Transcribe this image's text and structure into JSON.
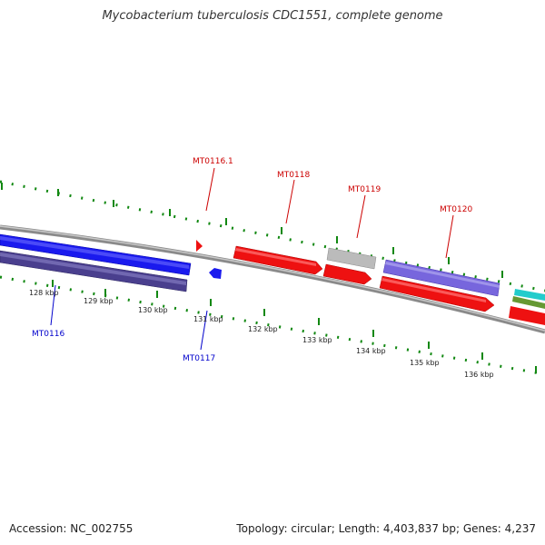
{
  "title": "Mycobacterium tuberculosis CDC1551, complete genome",
  "footer": {
    "accession": "Accession: NC_002755",
    "summary": "Topology: circular; Length: 4,403,837 bp; Genes: 4,237"
  },
  "colors": {
    "backbone": "#888888",
    "tick": "#118811",
    "forward_label": "#cc0000",
    "reverse_label": "#0000cc"
  },
  "scale": {
    "ticks": [
      "128 kbp",
      "129 kbp",
      "130 kbp",
      "131 kbp",
      "132 kbp",
      "133 kbp",
      "134 kbp",
      "135 kbp",
      "136 kbp"
    ]
  },
  "gene_labels": [
    {
      "text": "MT0116.1",
      "strand": "forward"
    },
    {
      "text": "MT0118",
      "strand": "forward"
    },
    {
      "text": "MT0119",
      "strand": "forward"
    },
    {
      "text": "MT0120",
      "strand": "forward"
    },
    {
      "text": "MT0116",
      "strand": "reverse"
    },
    {
      "text": "MT0117",
      "strand": "reverse"
    }
  ]
}
